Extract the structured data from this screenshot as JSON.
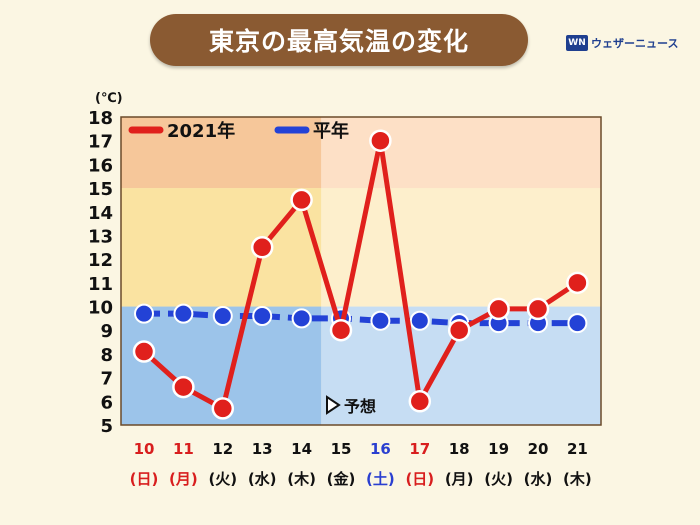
{
  "header": {
    "title": "東京の最高気温の変化",
    "brand": "ウェザーニュース",
    "brand_logo": "WN"
  },
  "colors": {
    "actual": "#e0201c",
    "normal": "#2342d6",
    "red_label": "#d81e1e",
    "blue_label": "#2a3fd0",
    "black_label": "#111111",
    "band_hot_past": "#f6c79a",
    "band_hot_future": "#fde0c6",
    "band_warm_past": "#fae3a1",
    "band_warm_future": "#fdefcc",
    "band_cool_past": "#9cc4ea",
    "band_cool_future": "#c6ddf3"
  },
  "chart_data": {
    "type": "line",
    "unit_label": "(℃)",
    "ylim": [
      5,
      18
    ],
    "y_ticks": [
      "5",
      "6",
      "7",
      "8",
      "9",
      "10",
      "11",
      "12",
      "13",
      "14",
      "15",
      "16",
      "17",
      "18"
    ],
    "x_days": [
      "10",
      "11",
      "12",
      "13",
      "14",
      "15",
      "16",
      "17",
      "18",
      "19",
      "20",
      "21"
    ],
    "x_weekdays": [
      "(日)",
      "(月)",
      "(火)",
      "(水)",
      "(木)",
      "(金)",
      "(土)",
      "(日)",
      "(月)",
      "(火)",
      "(水)",
      "(木)"
    ],
    "day_colors": [
      "red",
      "red",
      "black",
      "black",
      "black",
      "black",
      "blue",
      "red",
      "black",
      "black",
      "black",
      "black"
    ],
    "series": [
      {
        "name": "2021年",
        "values": [
          8.1,
          6.6,
          5.7,
          12.5,
          14.5,
          9.0,
          17.0,
          6.0,
          9.0,
          9.9,
          9.9,
          11.0
        ]
      },
      {
        "name": "平年",
        "values": [
          9.7,
          9.7,
          9.6,
          9.6,
          9.5,
          9.5,
          9.4,
          9.4,
          9.3,
          9.3,
          9.3,
          9.3
        ]
      }
    ],
    "forecast_label": "予想",
    "forecast_start_index": 5,
    "bands": [
      [
        5,
        10,
        "cool"
      ],
      [
        10,
        15,
        "warm"
      ],
      [
        15,
        18,
        "hot"
      ]
    ],
    "legend_position": "top-left"
  }
}
